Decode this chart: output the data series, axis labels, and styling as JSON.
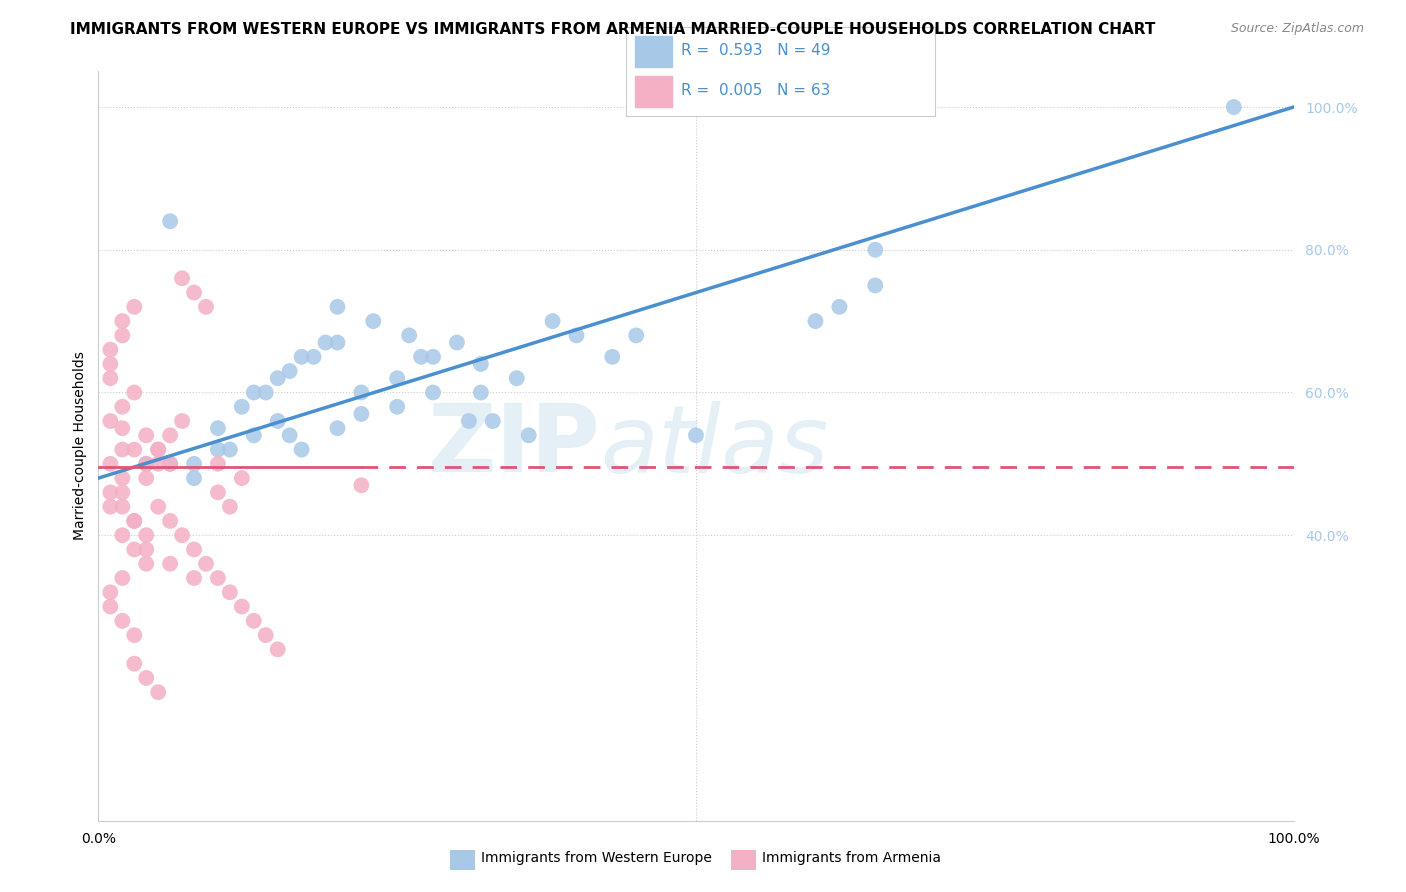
{
  "title": "IMMIGRANTS FROM WESTERN EUROPE VS IMMIGRANTS FROM ARMENIA MARRIED-COUPLE HOUSEHOLDS CORRELATION CHART",
  "source": "Source: ZipAtlas.com",
  "ylabel": "Married-couple Households",
  "blue_R": "0.593",
  "blue_N": "49",
  "pink_R": "0.005",
  "pink_N": "63",
  "blue_color": "#a8c8e8",
  "pink_color": "#f4b0c4",
  "blue_line_color": "#4a90d0",
  "pink_line_color": "#e05575",
  "legend_label_blue": "Immigrants from Western Europe",
  "legend_label_pink": "Immigrants from Armenia",
  "background_color": "#ffffff",
  "grid_color": "#cccccc",
  "title_fontsize": 11,
  "source_fontsize": 9,
  "axis_fontsize": 10,
  "tick_fontsize": 10,
  "blue_scatter_x": [
    0.04,
    0.16,
    0.31,
    0.08,
    0.1,
    0.12,
    0.14,
    0.16,
    0.18,
    0.2,
    0.13,
    0.15,
    0.17,
    0.19,
    0.22,
    0.25,
    0.27,
    0.3,
    0.32,
    0.35,
    0.38,
    0.4,
    0.43,
    0.45,
    0.2,
    0.23,
    0.26,
    0.28,
    0.32,
    0.1,
    0.06,
    0.08,
    0.11,
    0.13,
    0.15,
    0.17,
    0.2,
    0.22,
    0.25,
    0.28,
    0.33,
    0.36,
    0.6,
    0.62,
    0.65,
    0.65,
    0.5,
    0.95,
    0.06
  ],
  "blue_scatter_y": [
    0.5,
    0.54,
    0.56,
    0.5,
    0.55,
    0.58,
    0.6,
    0.63,
    0.65,
    0.67,
    0.6,
    0.62,
    0.65,
    0.67,
    0.6,
    0.62,
    0.65,
    0.67,
    0.64,
    0.62,
    0.7,
    0.68,
    0.65,
    0.68,
    0.72,
    0.7,
    0.68,
    0.65,
    0.6,
    0.52,
    0.5,
    0.48,
    0.52,
    0.54,
    0.56,
    0.52,
    0.55,
    0.57,
    0.58,
    0.6,
    0.56,
    0.54,
    0.7,
    0.72,
    0.75,
    0.8,
    0.54,
    1.0,
    0.84
  ],
  "pink_scatter_x": [
    0.01,
    0.02,
    0.01,
    0.02,
    0.03,
    0.01,
    0.02,
    0.01,
    0.02,
    0.03,
    0.01,
    0.02,
    0.03,
    0.04,
    0.02,
    0.03,
    0.01,
    0.02,
    0.04,
    0.05,
    0.06,
    0.07,
    0.03,
    0.04,
    0.02,
    0.01,
    0.02,
    0.03,
    0.05,
    0.04,
    0.02,
    0.01,
    0.03,
    0.02,
    0.04,
    0.06,
    0.08,
    0.1,
    0.12,
    0.22,
    0.05,
    0.06,
    0.07,
    0.08,
    0.09,
    0.1,
    0.11,
    0.12,
    0.13,
    0.14,
    0.15,
    0.04,
    0.05,
    0.06,
    0.03,
    0.04,
    0.05,
    0.07,
    0.08,
    0.09,
    0.1,
    0.11,
    0.01
  ],
  "pink_scatter_y": [
    0.5,
    0.52,
    0.56,
    0.58,
    0.6,
    0.62,
    0.55,
    0.64,
    0.68,
    0.52,
    0.46,
    0.44,
    0.42,
    0.4,
    0.7,
    0.72,
    0.66,
    0.48,
    0.5,
    0.52,
    0.54,
    0.56,
    0.38,
    0.36,
    0.34,
    0.32,
    0.28,
    0.26,
    0.5,
    0.48,
    0.46,
    0.44,
    0.42,
    0.4,
    0.38,
    0.36,
    0.34,
    0.5,
    0.48,
    0.47,
    0.44,
    0.42,
    0.4,
    0.38,
    0.36,
    0.34,
    0.32,
    0.3,
    0.28,
    0.26,
    0.24,
    0.54,
    0.52,
    0.5,
    0.22,
    0.2,
    0.18,
    0.76,
    0.74,
    0.72,
    0.46,
    0.44,
    0.3
  ]
}
